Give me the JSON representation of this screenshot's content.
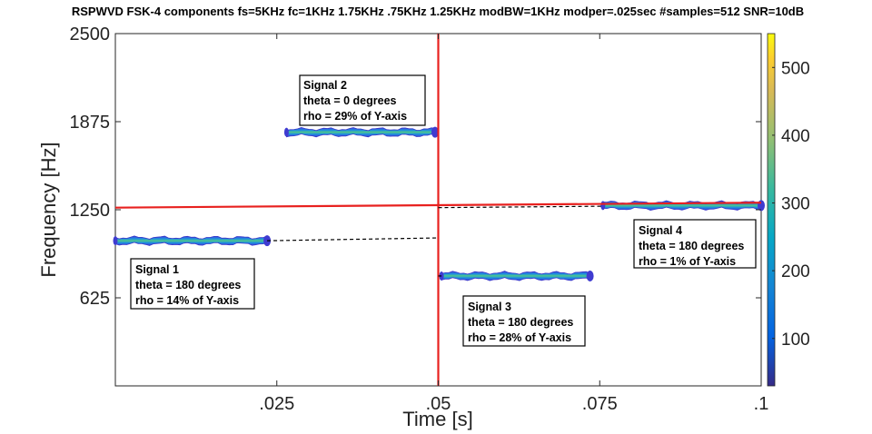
{
  "chart_data": {
    "type": "heatmap",
    "title": "RSPWVD FSK-4 components fs=5KHz fc=1KHz 1.75KHz .75KHz 1.25KHz modBW=1KHz modper=.025sec #samples=512 SNR=10dB",
    "xlabel": "Time [s]",
    "ylabel": "Frequency [Hz]",
    "xlim": [
      0.0,
      0.1
    ],
    "ylim": [
      0,
      2500
    ],
    "xticks": [
      0.025,
      0.05,
      0.075,
      0.1
    ],
    "xtick_labels": [
      ".025",
      ".05",
      ".075",
      ".1"
    ],
    "yticks": [
      625,
      1250,
      1875,
      2500
    ],
    "ytick_labels": [
      "625",
      "1250",
      "1875",
      "2500"
    ],
    "colorbar": {
      "range": [
        30,
        550
      ],
      "ticks": [
        100,
        200,
        300,
        400,
        500
      ],
      "tick_labels": [
        "100",
        "200",
        "300",
        "400",
        "500"
      ]
    },
    "components": [
      {
        "t_start": 0.0,
        "t_end": 0.0235,
        "freq": 1030
      },
      {
        "t_start": 0.0265,
        "t_end": 0.0495,
        "freq": 1800
      },
      {
        "t_start": 0.0505,
        "t_end": 0.0735,
        "freq": 780
      },
      {
        "t_start": 0.0755,
        "t_end": 0.1,
        "freq": 1280
      }
    ],
    "reference_lines": {
      "vertical_red_at_time": 0.05,
      "red_line": {
        "x": [
          0.0,
          0.1
        ],
        "y": [
          1265,
          1300
        ]
      },
      "dashed_lines": [
        {
          "x": [
            0.0235,
            0.05
          ],
          "y": [
            1030,
            1050
          ]
        },
        {
          "x": [
            0.05,
            0.0505
          ],
          "y": [
            780,
            780
          ]
        },
        {
          "x": [
            0.05,
            0.0755
          ],
          "y": [
            1265,
            1275
          ]
        }
      ]
    },
    "annotations": [
      {
        "id": "signal-2",
        "lines": [
          "Signal 2",
          "theta = 0 degrees",
          "rho = 29% of Y-axis"
        ]
      },
      {
        "id": "signal-1",
        "lines": [
          "Signal 1",
          "theta = 180 degrees",
          "rho = 14% of Y-axis"
        ]
      },
      {
        "id": "signal-3",
        "lines": [
          "Signal 3",
          "theta = 180 degrees",
          "rho = 28% of Y-axis"
        ]
      },
      {
        "id": "signal-4",
        "lines": [
          "Signal 4",
          "theta = 180 degrees",
          "rho = 1% of Y-axis"
        ]
      }
    ]
  }
}
